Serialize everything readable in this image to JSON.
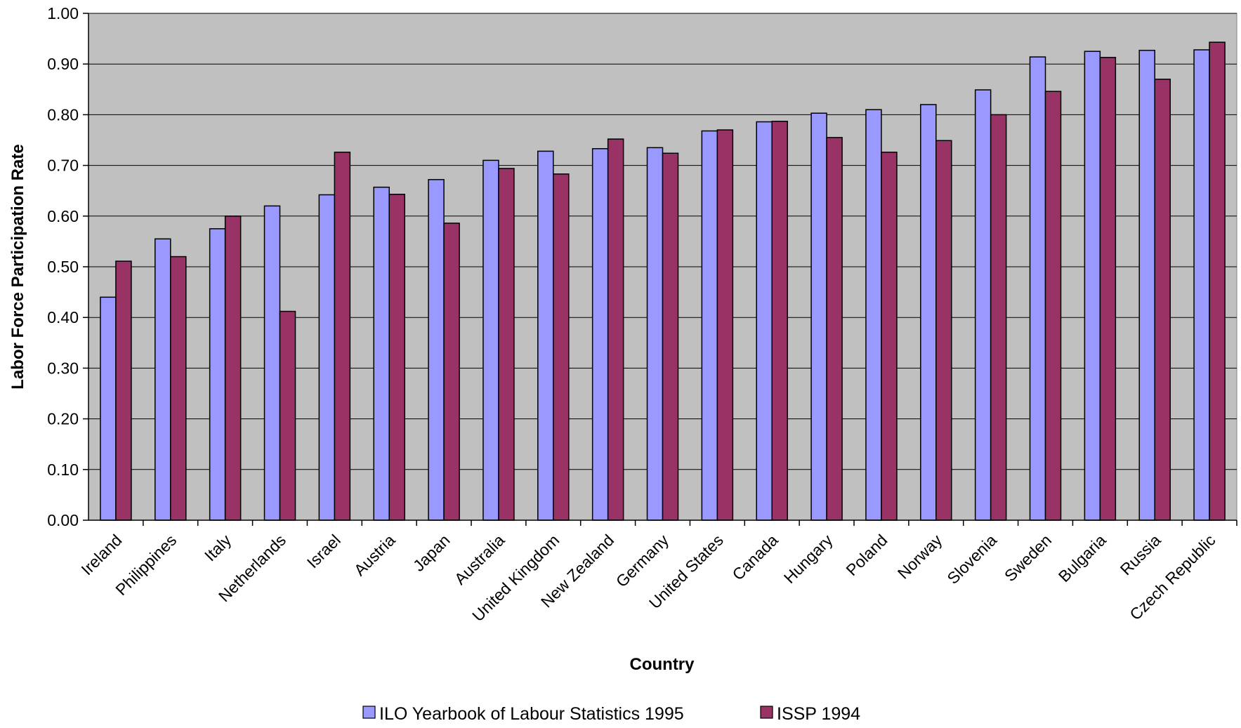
{
  "colors": {
    "plot_background": "#c0c0c0",
    "series_ilo": "#9999ff",
    "series_issp": "#993366",
    "bar_outline": "#000000",
    "gridline": "#000000"
  },
  "chart_data": {
    "type": "bar",
    "title": "",
    "xlabel": "Country",
    "ylabel": "Labor Force Participation Rate",
    "ylim": [
      0,
      1
    ],
    "yticks": [
      "0.00",
      "0.10",
      "0.20",
      "0.30",
      "0.40",
      "0.50",
      "0.60",
      "0.70",
      "0.80",
      "0.90",
      "1.00"
    ],
    "grid": true,
    "legend_position": "bottom",
    "categories": [
      "Ireland",
      "Philippines",
      "Italy",
      "Netherlands",
      "Israel",
      "Austria",
      "Japan",
      "Australia",
      "United Kingdom",
      "New Zealand",
      "Germany",
      "United States",
      "Canada",
      "Hungary",
      "Poland",
      "Norway",
      "Slovenia",
      "Sweden",
      "Bulgaria",
      "Russia",
      "Czech Republic"
    ],
    "series": [
      {
        "name": "ILO Yearbook of Labour Statistics 1995",
        "values": [
          0.44,
          0.555,
          0.575,
          0.62,
          0.642,
          0.657,
          0.672,
          0.71,
          0.728,
          0.733,
          0.735,
          0.768,
          0.786,
          0.803,
          0.81,
          0.82,
          0.849,
          0.914,
          0.925,
          0.927,
          0.928
        ]
      },
      {
        "name": "ISSP 1994",
        "values": [
          0.511,
          0.52,
          0.6,
          0.412,
          0.726,
          0.643,
          0.586,
          0.694,
          0.683,
          0.752,
          0.724,
          0.77,
          0.787,
          0.755,
          0.726,
          0.749,
          0.8,
          0.846,
          0.913,
          0.87,
          0.943
        ]
      }
    ]
  }
}
